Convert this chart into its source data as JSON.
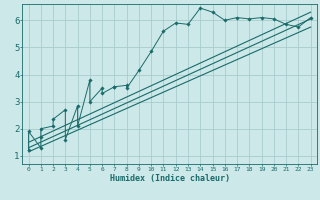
{
  "title": "",
  "xlabel": "Humidex (Indice chaleur)",
  "ylabel": "",
  "bg_color": "#cce8e8",
  "grid_color": "#aacccc",
  "line_color": "#1a6b6b",
  "xlim": [
    -0.5,
    23.5
  ],
  "ylim": [
    0.7,
    6.6
  ],
  "xticks": [
    0,
    1,
    2,
    3,
    4,
    5,
    6,
    7,
    8,
    9,
    10,
    11,
    12,
    13,
    14,
    15,
    16,
    17,
    18,
    19,
    20,
    21,
    22,
    23
  ],
  "yticks": [
    1,
    2,
    3,
    4,
    5,
    6
  ],
  "main_data_x": [
    0,
    0,
    1,
    1,
    1,
    2,
    2,
    3,
    3,
    4,
    4,
    5,
    5,
    6,
    6,
    7,
    7,
    8,
    8,
    9,
    10,
    11,
    12,
    13,
    14,
    15,
    16,
    17,
    18,
    19,
    20,
    21,
    22,
    23
  ],
  "main_data_y": [
    1.2,
    1.9,
    1.3,
    1.7,
    2.0,
    2.1,
    2.35,
    2.7,
    1.6,
    2.85,
    2.1,
    3.8,
    3.0,
    3.5,
    3.3,
    3.55,
    3.55,
    3.6,
    3.5,
    4.15,
    4.85,
    5.6,
    5.9,
    5.85,
    6.45,
    6.3,
    6.0,
    6.1,
    6.05,
    6.1,
    6.05,
    5.85,
    5.75,
    6.1
  ],
  "line1_x": [
    0,
    23
  ],
  "line1_y": [
    1.15,
    5.75
  ],
  "line2_x": [
    0,
    23
  ],
  "line2_y": [
    1.5,
    6.3
  ],
  "line3_x": [
    0,
    23
  ],
  "line3_y": [
    1.3,
    6.05
  ]
}
